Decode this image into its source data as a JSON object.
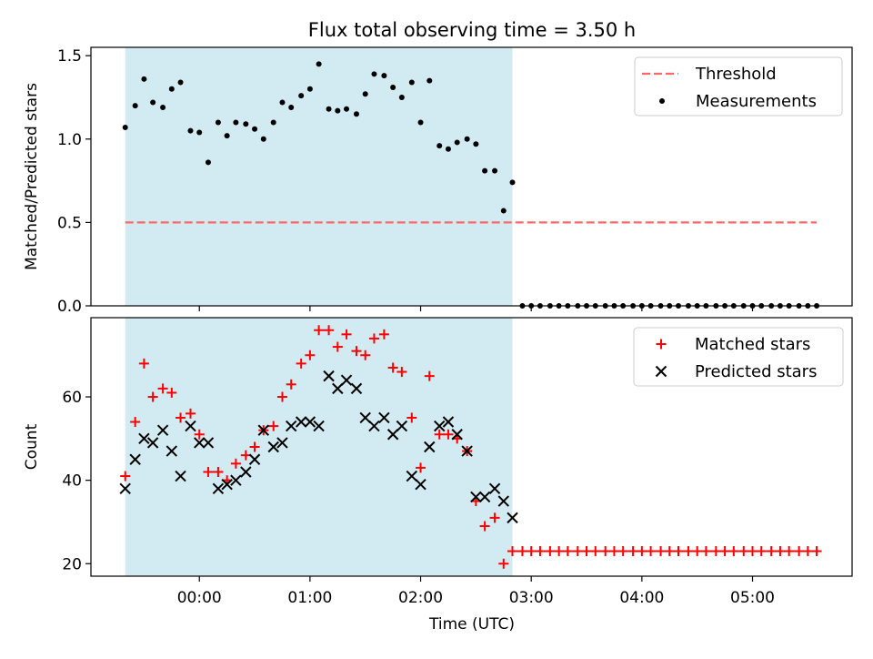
{
  "title": "Flux total observing time = 3.50 h",
  "colors": {
    "shade": "#add8e6",
    "threshold": "#ff6666",
    "measurements": "#000000",
    "matched": "#ff0000",
    "predicted": "#000000"
  },
  "chart_data": [
    {
      "type": "scatter",
      "panel": "top",
      "ylabel": "Matched/Predicted stars",
      "xlabel": "",
      "ylim": [
        0,
        1.55
      ],
      "xlim": [
        -0.98,
        5.9
      ],
      "yticks": [
        0.0,
        0.5,
        1.0,
        1.5
      ],
      "ytick_labels": [
        "0.0",
        "0.5",
        "1.0",
        "1.5"
      ],
      "legend": {
        "location": "upper right",
        "entries": [
          "Threshold",
          "Measurements"
        ]
      },
      "shaded_span": {
        "x": [
          -0.67,
          2.83
        ]
      },
      "threshold": {
        "name": "Threshold",
        "y": 0.5,
        "x": [
          -0.67,
          5.58
        ]
      },
      "series": [
        {
          "name": "Measurements",
          "marker": "dot",
          "x": [
            -0.67,
            -0.58,
            -0.5,
            -0.42,
            -0.33,
            -0.25,
            -0.17,
            -0.08,
            0.0,
            0.08,
            0.17,
            0.25,
            0.33,
            0.42,
            0.5,
            0.58,
            0.67,
            0.75,
            0.83,
            0.92,
            1.0,
            1.08,
            1.17,
            1.25,
            1.33,
            1.42,
            1.5,
            1.58,
            1.67,
            1.75,
            1.83,
            1.92,
            2.0,
            2.08,
            2.17,
            2.25,
            2.33,
            2.42,
            2.5,
            2.58,
            2.67,
            2.75,
            2.83,
            2.92,
            3.0,
            3.08,
            3.17,
            3.25,
            3.33,
            3.42,
            3.5,
            3.58,
            3.67,
            3.75,
            3.83,
            3.92,
            4.0,
            4.08,
            4.17,
            4.25,
            4.33,
            4.42,
            4.5,
            4.58,
            4.67,
            4.75,
            4.83,
            4.92,
            5.0,
            5.08,
            5.17,
            5.25,
            5.33,
            5.42,
            5.5,
            5.58
          ],
          "y": [
            1.07,
            1.2,
            1.36,
            1.22,
            1.19,
            1.3,
            1.34,
            1.05,
            1.04,
            0.86,
            1.1,
            1.02,
            1.1,
            1.09,
            1.06,
            1.0,
            1.1,
            1.22,
            1.19,
            1.26,
            1.3,
            1.45,
            1.18,
            1.17,
            1.18,
            1.15,
            1.27,
            1.39,
            1.38,
            1.31,
            1.25,
            1.34,
            1.1,
            1.35,
            0.96,
            0.94,
            0.98,
            1.0,
            0.97,
            0.81,
            0.81,
            0.57,
            0.74,
            0,
            0,
            0,
            0,
            0,
            0,
            0,
            0,
            0,
            0,
            0,
            0,
            0,
            0,
            0,
            0,
            0,
            0,
            0,
            0,
            0,
            0,
            0,
            0,
            0,
            0,
            0,
            0,
            0,
            0,
            0,
            0,
            0
          ]
        }
      ]
    },
    {
      "type": "scatter",
      "panel": "bottom",
      "ylabel": "Count",
      "xlabel": "Time (UTC)",
      "ylim": [
        17,
        79
      ],
      "xlim": [
        -0.98,
        5.9
      ],
      "yticks": [
        20,
        40,
        60
      ],
      "ytick_labels": [
        "20",
        "40",
        "60"
      ],
      "xticks": [
        0,
        1,
        2,
        3,
        4,
        5
      ],
      "xtick_labels": [
        "00:00",
        "01:00",
        "02:00",
        "03:00",
        "04:00",
        "05:00"
      ],
      "legend": {
        "location": "upper right",
        "entries": [
          "Matched stars",
          "Predicted stars"
        ]
      },
      "shaded_span": {
        "x": [
          -0.67,
          2.83
        ]
      },
      "series": [
        {
          "name": "Matched stars",
          "marker": "plus",
          "x": [
            -0.67,
            -0.58,
            -0.5,
            -0.42,
            -0.33,
            -0.25,
            -0.17,
            -0.08,
            0.0,
            0.08,
            0.17,
            0.25,
            0.33,
            0.42,
            0.5,
            0.58,
            0.67,
            0.75,
            0.83,
            0.92,
            1.0,
            1.08,
            1.17,
            1.25,
            1.33,
            1.42,
            1.5,
            1.58,
            1.67,
            1.75,
            1.83,
            1.92,
            2.0,
            2.08,
            2.17,
            2.25,
            2.33,
            2.42,
            2.5,
            2.58,
            2.67,
            2.75,
            2.83,
            2.92,
            3.0,
            3.08,
            3.17,
            3.25,
            3.33,
            3.42,
            3.5,
            3.58,
            3.67,
            3.75,
            3.83,
            3.92,
            4.0,
            4.08,
            4.17,
            4.25,
            4.33,
            4.42,
            4.5,
            4.58,
            4.67,
            4.75,
            4.83,
            4.92,
            5.0,
            5.08,
            5.17,
            5.25,
            5.33,
            5.42,
            5.5,
            5.58
          ],
          "y": [
            41,
            54,
            68,
            60,
            62,
            61,
            55,
            56,
            51,
            42,
            42,
            40,
            44,
            46,
            48,
            52,
            53,
            60,
            63,
            68,
            70,
            76,
            76,
            72,
            75,
            71,
            70,
            74,
            75,
            67,
            66,
            55,
            43,
            65,
            51,
            51,
            50,
            47,
            35,
            29,
            31,
            20,
            23,
            23,
            23,
            23,
            23,
            23,
            23,
            23,
            23,
            23,
            23,
            23,
            23,
            23,
            23,
            23,
            23,
            23,
            23,
            23,
            23,
            23,
            23,
            23,
            23,
            23,
            23,
            23,
            23,
            23,
            23,
            23,
            23,
            23
          ]
        },
        {
          "name": "Predicted stars",
          "marker": "x",
          "x": [
            -0.67,
            -0.58,
            -0.5,
            -0.42,
            -0.33,
            -0.25,
            -0.17,
            -0.08,
            0.0,
            0.08,
            0.17,
            0.25,
            0.33,
            0.42,
            0.5,
            0.58,
            0.67,
            0.75,
            0.83,
            0.92,
            1.0,
            1.08,
            1.17,
            1.25,
            1.33,
            1.42,
            1.5,
            1.58,
            1.67,
            1.75,
            1.83,
            1.92,
            2.0,
            2.08,
            2.17,
            2.25,
            2.33,
            2.42,
            2.5,
            2.58,
            2.67,
            2.75,
            2.83
          ],
          "y": [
            38,
            45,
            50,
            49,
            52,
            47,
            41,
            53,
            49,
            49,
            38,
            39,
            40,
            42,
            45,
            52,
            48,
            49,
            53,
            54,
            54,
            53,
            65,
            62,
            64,
            62,
            55,
            53,
            55,
            51,
            53,
            41,
            39,
            48,
            53,
            54,
            51,
            47,
            36,
            36,
            38,
            35,
            31
          ]
        }
      ]
    }
  ]
}
